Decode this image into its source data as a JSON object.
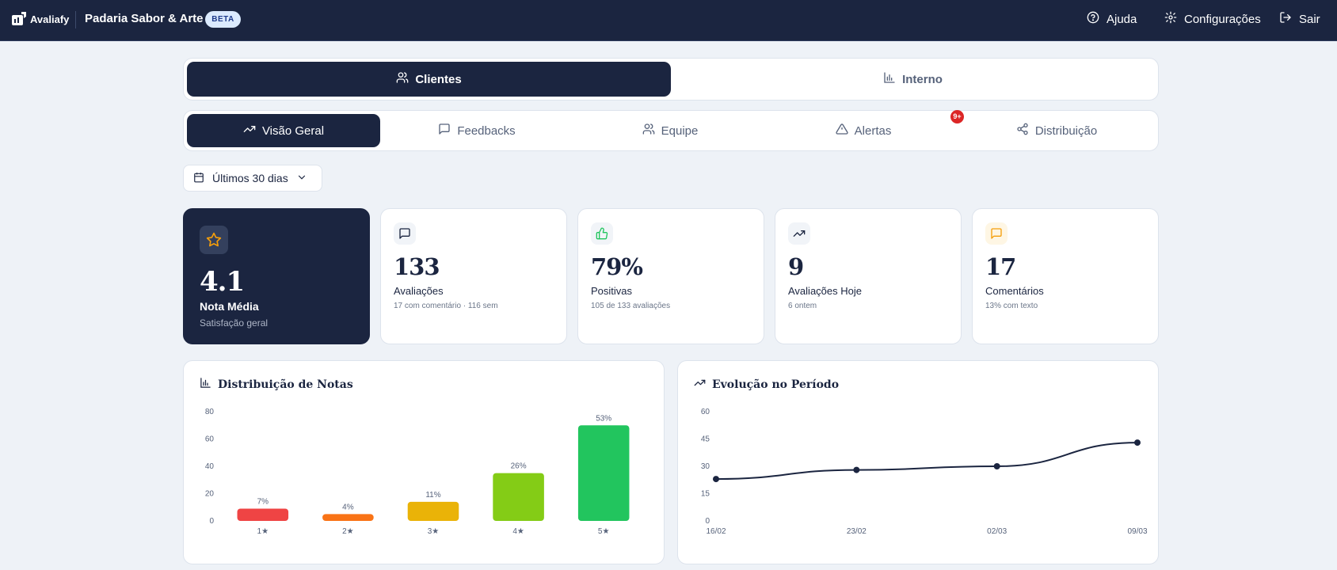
{
  "header": {
    "logo_text": "Avaliafy",
    "store_name": "Padaria Sabor & Arte",
    "badge": "BETA",
    "nav": [
      {
        "label": "Ajuda",
        "icon": "help-circle-icon"
      },
      {
        "label": "Configurações",
        "icon": "gear-icon"
      },
      {
        "label": "Sair",
        "icon": "logout-icon"
      }
    ]
  },
  "main_tabs": [
    {
      "label": "Clientes",
      "icon": "users-icon",
      "active": true
    },
    {
      "label": "Interno",
      "icon": "bar-chart-icon",
      "active": false
    }
  ],
  "sub_tabs": [
    {
      "label": "Visão Geral",
      "icon": "trending-up-icon",
      "active": true
    },
    {
      "label": "Feedbacks",
      "icon": "message-square-icon",
      "active": false
    },
    {
      "label": "Equipe",
      "icon": "users-icon",
      "active": false
    },
    {
      "label": "Alertas",
      "icon": "alert-triangle-icon",
      "active": false,
      "badge": "9+"
    },
    {
      "label": "Distribuição",
      "icon": "share-icon",
      "active": false
    }
  ],
  "date_filter": {
    "label": "Últimos 30 dias"
  },
  "kpis": [
    {
      "value": "4.1",
      "label": "Nota Média",
      "sub": "Satisfação geral",
      "icon": "star-icon"
    },
    {
      "value": "133",
      "label": "Avaliações",
      "sub": "17 com comentário · 116 sem",
      "icon": "message-square-icon"
    },
    {
      "value": "79%",
      "label": "Positivas",
      "sub": "105 de 133 avaliações",
      "icon": "thumbs-up-icon"
    },
    {
      "value": "9",
      "label": "Avaliações Hoje",
      "sub": "6 ontem",
      "icon": "trending-up-icon"
    },
    {
      "value": "17",
      "label": "Comentários",
      "sub": "13% com texto",
      "icon": "message-square-icon"
    }
  ],
  "colors": {
    "navy": "#1b2540",
    "star": "#f59e0b",
    "thumbs": "#22c55e",
    "comment": "#f59e0b",
    "bars": [
      "#ef4444",
      "#f97316",
      "#eab308",
      "#84cc16",
      "#22c55e"
    ]
  },
  "chart_data": [
    {
      "type": "bar",
      "title": "Distribuição de Notas",
      "categories": [
        "1★",
        "2★",
        "3★",
        "4★",
        "5★"
      ],
      "values": [
        9,
        5,
        14,
        35,
        70
      ],
      "data_labels": [
        "7%",
        "4%",
        "11%",
        "26%",
        "53%"
      ],
      "ylim": [
        0,
        80
      ],
      "yticks": [
        0,
        20,
        40,
        60,
        80
      ],
      "grid": false
    },
    {
      "type": "line",
      "title": "Evolução no Período",
      "x": [
        "16/02",
        "23/02",
        "02/03",
        "09/03"
      ],
      "values": [
        23,
        28,
        30,
        43
      ],
      "ylim": [
        0,
        60
      ],
      "yticks": [
        0,
        15,
        30,
        45,
        60
      ],
      "grid": false
    }
  ]
}
